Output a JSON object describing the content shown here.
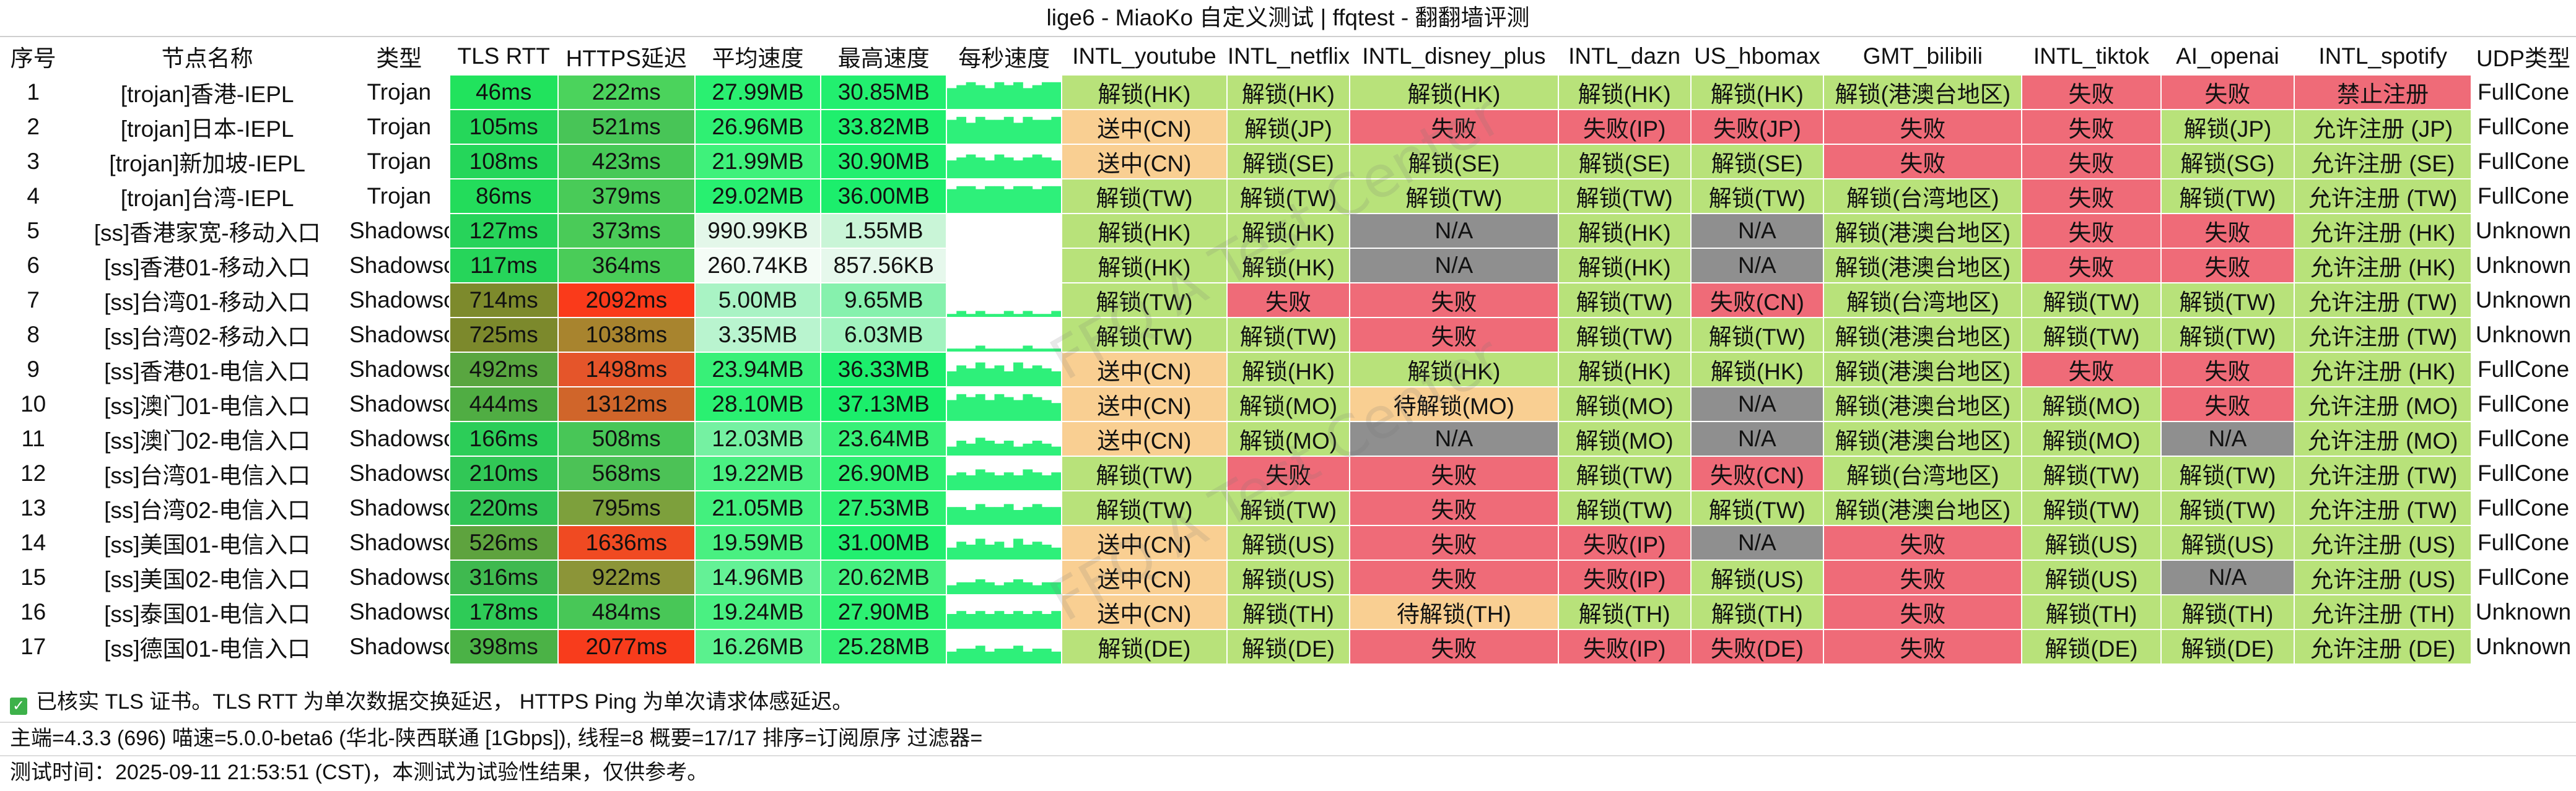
{
  "title": "lige6 - MiaoKo 自定义测试 | ffqtest - 翻翻墙评测",
  "watermark": "FFQ A Test Center",
  "columns": [
    "序号",
    "节点名称",
    "类型",
    "TLS RTT",
    "HTTPS延迟",
    "平均速度",
    "最高速度",
    "每秒速度",
    "INTL_youtube",
    "INTL_netflix",
    "INTL_disney_plus",
    "INTL_dazn",
    "US_hbomax",
    "GMT_bilibili",
    "INTL_tiktok",
    "AI_openai",
    "INTL_spotify",
    "UDP类型"
  ],
  "colors": {
    "unlock_green": "#b8e27a",
    "fail_red": "#ef6b78",
    "na_gray": "#8f8f8f",
    "pending_orange": "#f9cf92"
  },
  "rows": [
    {
      "idx": "1",
      "name": "[trojan]香港-IEPL",
      "type": "Trojan",
      "tls": "46ms",
      "tls_color": "#21e35d",
      "https": "222ms",
      "https_color": "#4bd35c",
      "avg": "27.99MB",
      "avg_color": "#2af071",
      "max": "30.85MB",
      "max_color": "#22ef6f",
      "spark": [
        7,
        8,
        9,
        8,
        7,
        9,
        8,
        9,
        7,
        8,
        9,
        9
      ],
      "youtube": "解锁(HK)",
      "netflix": "解锁(HK)",
      "disney": "解锁(HK)",
      "dazn": "解锁(HK)",
      "hbomax": "解锁(HK)",
      "bilibili": "解锁(港澳台地区)",
      "tiktok": "失败",
      "openai": "失败",
      "spotify": "禁止注册",
      "udp": "FullCone"
    },
    {
      "idx": "2",
      "name": "[trojan]日本-IEPL",
      "type": "Trojan",
      "tls": "105ms",
      "tls_color": "#25d75a",
      "https": "521ms",
      "https_color": "#48c557",
      "avg": "26.96MB",
      "avg_color": "#2ff073",
      "max": "33.82MB",
      "max_color": "#1fef6d",
      "spark": [
        8,
        9,
        7,
        9,
        8,
        8,
        9,
        7,
        9,
        8,
        8,
        9
      ],
      "youtube": "送中(CN)",
      "netflix": "解锁(JP)",
      "disney": "失败",
      "dazn": "失败(IP)",
      "hbomax": "失败(JP)",
      "bilibili": "失败",
      "tiktok": "失败",
      "openai": "解锁(JP)",
      "spotify": "允许注册 (JP)",
      "udp": "FullCone"
    },
    {
      "idx": "3",
      "name": "[trojan]新加坡-IEPL",
      "type": "Trojan",
      "tls": "108ms",
      "tls_color": "#25d65a",
      "https": "423ms",
      "https_color": "#47c957",
      "avg": "21.99MB",
      "avg_color": "#3ff17b",
      "max": "30.90MB",
      "max_color": "#22ef6f",
      "spark": [
        6,
        7,
        8,
        7,
        6,
        8,
        7,
        6,
        7,
        8,
        7,
        6
      ],
      "youtube": "送中(CN)",
      "netflix": "解锁(SE)",
      "disney": "解锁(SE)",
      "dazn": "解锁(SE)",
      "hbomax": "解锁(SE)",
      "bilibili": "失败",
      "tiktok": "失败",
      "openai": "解锁(SG)",
      "spotify": "允许注册 (SE)",
      "udp": "FullCone"
    },
    {
      "idx": "4",
      "name": "[trojan]台湾-IEPL",
      "type": "Trojan",
      "tls": "86ms",
      "tls_color": "#23dc5b",
      "https": "379ms",
      "https_color": "#49cb58",
      "avg": "29.02MB",
      "avg_color": "#28f070",
      "max": "36.00MB",
      "max_color": "#1cee6c",
      "spark": [
        8,
        9,
        9,
        8,
        9,
        9,
        8,
        9,
        9,
        8,
        9,
        9
      ],
      "youtube": "解锁(TW)",
      "netflix": "解锁(TW)",
      "disney": "解锁(TW)",
      "dazn": "解锁(TW)",
      "hbomax": "解锁(TW)",
      "bilibili": "解锁(台湾地区)",
      "tiktok": "失败",
      "openai": "解锁(TW)",
      "spotify": "允许注册 (TW)",
      "udp": "FullCone"
    },
    {
      "idx": "5",
      "name": "[ss]香港家宽-移动入口",
      "type": "Shadowsocks",
      "tls": "127ms",
      "tls_color": "#27d35a",
      "https": "373ms",
      "https_color": "#4acb58",
      "avg": "990.99KB",
      "avg_color": "#e3f7e9",
      "max": "1.55MB",
      "max_color": "#c9f5d7",
      "spark": [
        0,
        0,
        0,
        0,
        0,
        0,
        0,
        0,
        0,
        0,
        0,
        0
      ],
      "youtube": "解锁(HK)",
      "netflix": "解锁(HK)",
      "disney": "N/A",
      "dazn": "解锁(HK)",
      "hbomax": "N/A",
      "bilibili": "解锁(港澳台地区)",
      "tiktok": "失败",
      "openai": "失败",
      "spotify": "允许注册 (HK)",
      "udp": "Unknown"
    },
    {
      "idx": "6",
      "name": "[ss]香港01-移动入口",
      "type": "Shadowsocks",
      "tls": "117ms",
      "tls_color": "#26d55a",
      "https": "364ms",
      "https_color": "#4acc58",
      "avg": "260.74KB",
      "avg_color": "#f4fcf6",
      "max": "857.56KB",
      "max_color": "#e6f8ec",
      "spark": [
        0,
        0,
        0,
        0,
        0,
        0,
        0,
        0,
        0,
        0,
        0,
        0
      ],
      "youtube": "解锁(HK)",
      "netflix": "解锁(HK)",
      "disney": "N/A",
      "dazn": "解锁(HK)",
      "hbomax": "N/A",
      "bilibili": "解锁(港澳台地区)",
      "tiktok": "失败",
      "openai": "失败",
      "spotify": "允许注册 (HK)",
      "udp": "Unknown"
    },
    {
      "idx": "7",
      "name": "[ss]台湾01-移动入口",
      "type": "Shadowsocks",
      "tls": "714ms",
      "tls_color": "#7d8a2c",
      "https": "2092ms",
      "https_color": "#fa3a1a",
      "avg": "5.00MB",
      "avg_color": "#a9f3c4",
      "max": "9.65MB",
      "max_color": "#86f1ad",
      "spark": [
        1,
        2,
        1,
        2,
        1,
        1,
        2,
        1,
        2,
        1,
        1,
        2
      ],
      "youtube": "解锁(TW)",
      "netflix": "失败",
      "disney": "失败",
      "dazn": "解锁(TW)",
      "hbomax": "失败(CN)",
      "bilibili": "解锁(台湾地区)",
      "tiktok": "解锁(TW)",
      "openai": "解锁(TW)",
      "spotify": "允许注册 (TW)",
      "udp": "Unknown"
    },
    {
      "idx": "8",
      "name": "[ss]台湾02-移动入口",
      "type": "Shadowsocks",
      "tls": "725ms",
      "tls_color": "#7c892c",
      "https": "1038ms",
      "https_color": "#a8842e",
      "avg": "3.35MB",
      "avg_color": "#b9f4cf",
      "max": "6.03MB",
      "max_color": "#a2f3bf",
      "spark": [
        1,
        1,
        1,
        2,
        1,
        1,
        1,
        1,
        2,
        1,
        1,
        1
      ],
      "youtube": "解锁(TW)",
      "netflix": "解锁(TW)",
      "disney": "失败",
      "dazn": "解锁(TW)",
      "hbomax": "解锁(TW)",
      "bilibili": "解锁(港澳台地区)",
      "tiktok": "解锁(TW)",
      "openai": "解锁(TW)",
      "spotify": "允许注册 (TW)",
      "udp": "Unknown"
    },
    {
      "idx": "9",
      "name": "[ss]香港01-电信入口",
      "type": "Shadowsocks",
      "tls": "492ms",
      "tls_color": "#59a640",
      "https": "1498ms",
      "https_color": "#e5552a",
      "avg": "23.94MB",
      "avg_color": "#38f078",
      "max": "36.33MB",
      "max_color": "#1cee6c",
      "spark": [
        5,
        7,
        6,
        8,
        6,
        7,
        5,
        8,
        6,
        7,
        6,
        5
      ],
      "youtube": "送中(CN)",
      "netflix": "解锁(HK)",
      "disney": "解锁(HK)",
      "dazn": "解锁(HK)",
      "hbomax": "解锁(HK)",
      "bilibili": "解锁(港澳台地区)",
      "tiktok": "失败",
      "openai": "失败",
      "spotify": "允许注册 (HK)",
      "udp": "FullCone"
    },
    {
      "idx": "10",
      "name": "[ss]澳门01-电信入口",
      "type": "Shadowsocks",
      "tls": "444ms",
      "tls_color": "#50ad43",
      "https": "1312ms",
      "https_color": "#d0652a",
      "avg": "28.10MB",
      "avg_color": "#2af071",
      "max": "37.13MB",
      "max_color": "#1bee6b",
      "spark": [
        7,
        9,
        8,
        9,
        7,
        9,
        8,
        7,
        9,
        8,
        7,
        6
      ],
      "youtube": "送中(CN)",
      "netflix": "解锁(MO)",
      "disney": "待解锁(MO)",
      "dazn": "解锁(MO)",
      "hbomax": "N/A",
      "bilibili": "解锁(港澳台地区)",
      "tiktok": "解锁(MO)",
      "openai": "失败",
      "spotify": "允许注册 (MO)",
      "udp": "FullCone"
    },
    {
      "idx": "11",
      "name": "[ss]澳门02-电信入口",
      "type": "Shadowsocks",
      "tls": "166ms",
      "tls_color": "#2ccd58",
      "https": "508ms",
      "https_color": "#48c657",
      "avg": "12.03MB",
      "avg_color": "#75f1a2",
      "max": "23.64MB",
      "max_color": "#38f078",
      "spark": [
        3,
        5,
        4,
        6,
        5,
        4,
        5,
        3,
        4,
        5,
        4,
        3
      ],
      "youtube": "送中(CN)",
      "netflix": "解锁(MO)",
      "disney": "N/A",
      "dazn": "解锁(MO)",
      "hbomax": "N/A",
      "bilibili": "解锁(港澳台地区)",
      "tiktok": "解锁(MO)",
      "openai": "N/A",
      "spotify": "允许注册 (MO)",
      "udp": "FullCone"
    },
    {
      "idx": "12",
      "name": "[ss]台湾01-电信入口",
      "type": "Shadowsocks",
      "tls": "210ms",
      "tls_color": "#31c756",
      "https": "568ms",
      "https_color": "#4cc256",
      "avg": "19.22MB",
      "avg_color": "#4af082",
      "max": "26.90MB",
      "max_color": "#2ff073",
      "spark": [
        5,
        6,
        5,
        7,
        6,
        5,
        6,
        5,
        7,
        6,
        5,
        6
      ],
      "youtube": "解锁(TW)",
      "netflix": "失败",
      "disney": "失败",
      "dazn": "解锁(TW)",
      "hbomax": "失败(CN)",
      "bilibili": "解锁(台湾地区)",
      "tiktok": "解锁(TW)",
      "openai": "解锁(TW)",
      "spotify": "允许注册 (TW)",
      "udp": "FullCone"
    },
    {
      "idx": "13",
      "name": "[ss]台湾02-电信入口",
      "type": "Shadowsocks",
      "tls": "220ms",
      "tls_color": "#33c556",
      "https": "795ms",
      "https_color": "#7da03c",
      "avg": "21.05MB",
      "avg_color": "#43f07e",
      "max": "27.53MB",
      "max_color": "#2df072",
      "spark": [
        6,
        6,
        5,
        7,
        6,
        6,
        7,
        5,
        6,
        7,
        6,
        6
      ],
      "youtube": "解锁(TW)",
      "netflix": "解锁(TW)",
      "disney": "失败",
      "dazn": "解锁(TW)",
      "hbomax": "解锁(TW)",
      "bilibili": "解锁(港澳台地区)",
      "tiktok": "解锁(TW)",
      "openai": "解锁(TW)",
      "spotify": "允许注册 (TW)",
      "udp": "FullCone"
    },
    {
      "idx": "14",
      "name": "[ss]美国01-电信入口",
      "type": "Shadowsocks",
      "tls": "526ms",
      "tls_color": "#5ea33e",
      "https": "1636ms",
      "https_color": "#f04a22",
      "avg": "19.59MB",
      "avg_color": "#49f081",
      "max": "31.00MB",
      "max_color": "#22ef6f",
      "spark": [
        4,
        6,
        5,
        7,
        5,
        6,
        4,
        7,
        5,
        6,
        5,
        4
      ],
      "youtube": "送中(CN)",
      "netflix": "解锁(US)",
      "disney": "失败",
      "dazn": "失败(IP)",
      "hbomax": "N/A",
      "bilibili": "失败",
      "tiktok": "解锁(US)",
      "openai": "解锁(US)",
      "spotify": "允许注册 (US)",
      "udp": "FullCone"
    },
    {
      "idx": "15",
      "name": "[ss]美国02-电信入口",
      "type": "Shadowsocks",
      "tls": "316ms",
      "tls_color": "#3fb94f",
      "https": "922ms",
      "https_color": "#8c9538",
      "avg": "14.96MB",
      "avg_color": "#64f196",
      "max": "20.62MB",
      "max_color": "#45f07f",
      "spark": [
        3,
        4,
        4,
        5,
        4,
        3,
        4,
        5,
        4,
        3,
        4,
        4
      ],
      "youtube": "送中(CN)",
      "netflix": "解锁(US)",
      "disney": "失败",
      "dazn": "失败(IP)",
      "hbomax": "解锁(US)",
      "bilibili": "失败",
      "tiktok": "解锁(US)",
      "openai": "N/A",
      "spotify": "允许注册 (US)",
      "udp": "FullCone"
    },
    {
      "idx": "16",
      "name": "[ss]泰国01-电信入口",
      "type": "Shadowsocks",
      "tls": "178ms",
      "tls_color": "#2ecb57",
      "https": "484ms",
      "https_color": "#48c757",
      "avg": "19.24MB",
      "avg_color": "#4af082",
      "max": "27.90MB",
      "max_color": "#2cf072",
      "spark": [
        5,
        6,
        5,
        6,
        5,
        6,
        5,
        6,
        5,
        6,
        5,
        6
      ],
      "youtube": "送中(CN)",
      "netflix": "解锁(TH)",
      "disney": "待解锁(TH)",
      "dazn": "解锁(TH)",
      "hbomax": "解锁(TH)",
      "bilibili": "失败",
      "tiktok": "解锁(TH)",
      "openai": "解锁(TH)",
      "spotify": "允许注册 (TH)",
      "udp": "Unknown"
    },
    {
      "idx": "17",
      "name": "[ss]德国01-电信入口",
      "type": "Shadowsocks",
      "tls": "398ms",
      "tls_color": "#4bb246",
      "https": "2077ms",
      "https_color": "#f83c1c",
      "avg": "16.26MB",
      "avg_color": "#5af18e",
      "max": "25.28MB",
      "max_color": "#33f075",
      "spark": [
        4,
        5,
        5,
        6,
        4,
        5,
        5,
        6,
        4,
        5,
        5,
        4
      ],
      "youtube": "解锁(DE)",
      "netflix": "解锁(DE)",
      "disney": "失败",
      "dazn": "失败(IP)",
      "hbomax": "失败(DE)",
      "bilibili": "失败",
      "tiktok": "解锁(DE)",
      "openai": "解锁(DE)",
      "spotify": "允许注册 (DE)",
      "udp": "Unknown"
    }
  ],
  "footer": {
    "note": "已核实 TLS 证书。TLS RTT 为单次数据交换延迟，  HTTPS Ping 为单次请求体感延迟。",
    "info": "主端=4.3.3 (696) 喵速=5.0.0-beta6 (\u0001华北-陕西联通 [1Gbps]), 线程=8 概要=17/17 排序=订阅原序 过滤器=",
    "time": "测试时间：2025-09-11 21:53:51 (CST)，本测试为试验性结果，仅供参考。"
  }
}
